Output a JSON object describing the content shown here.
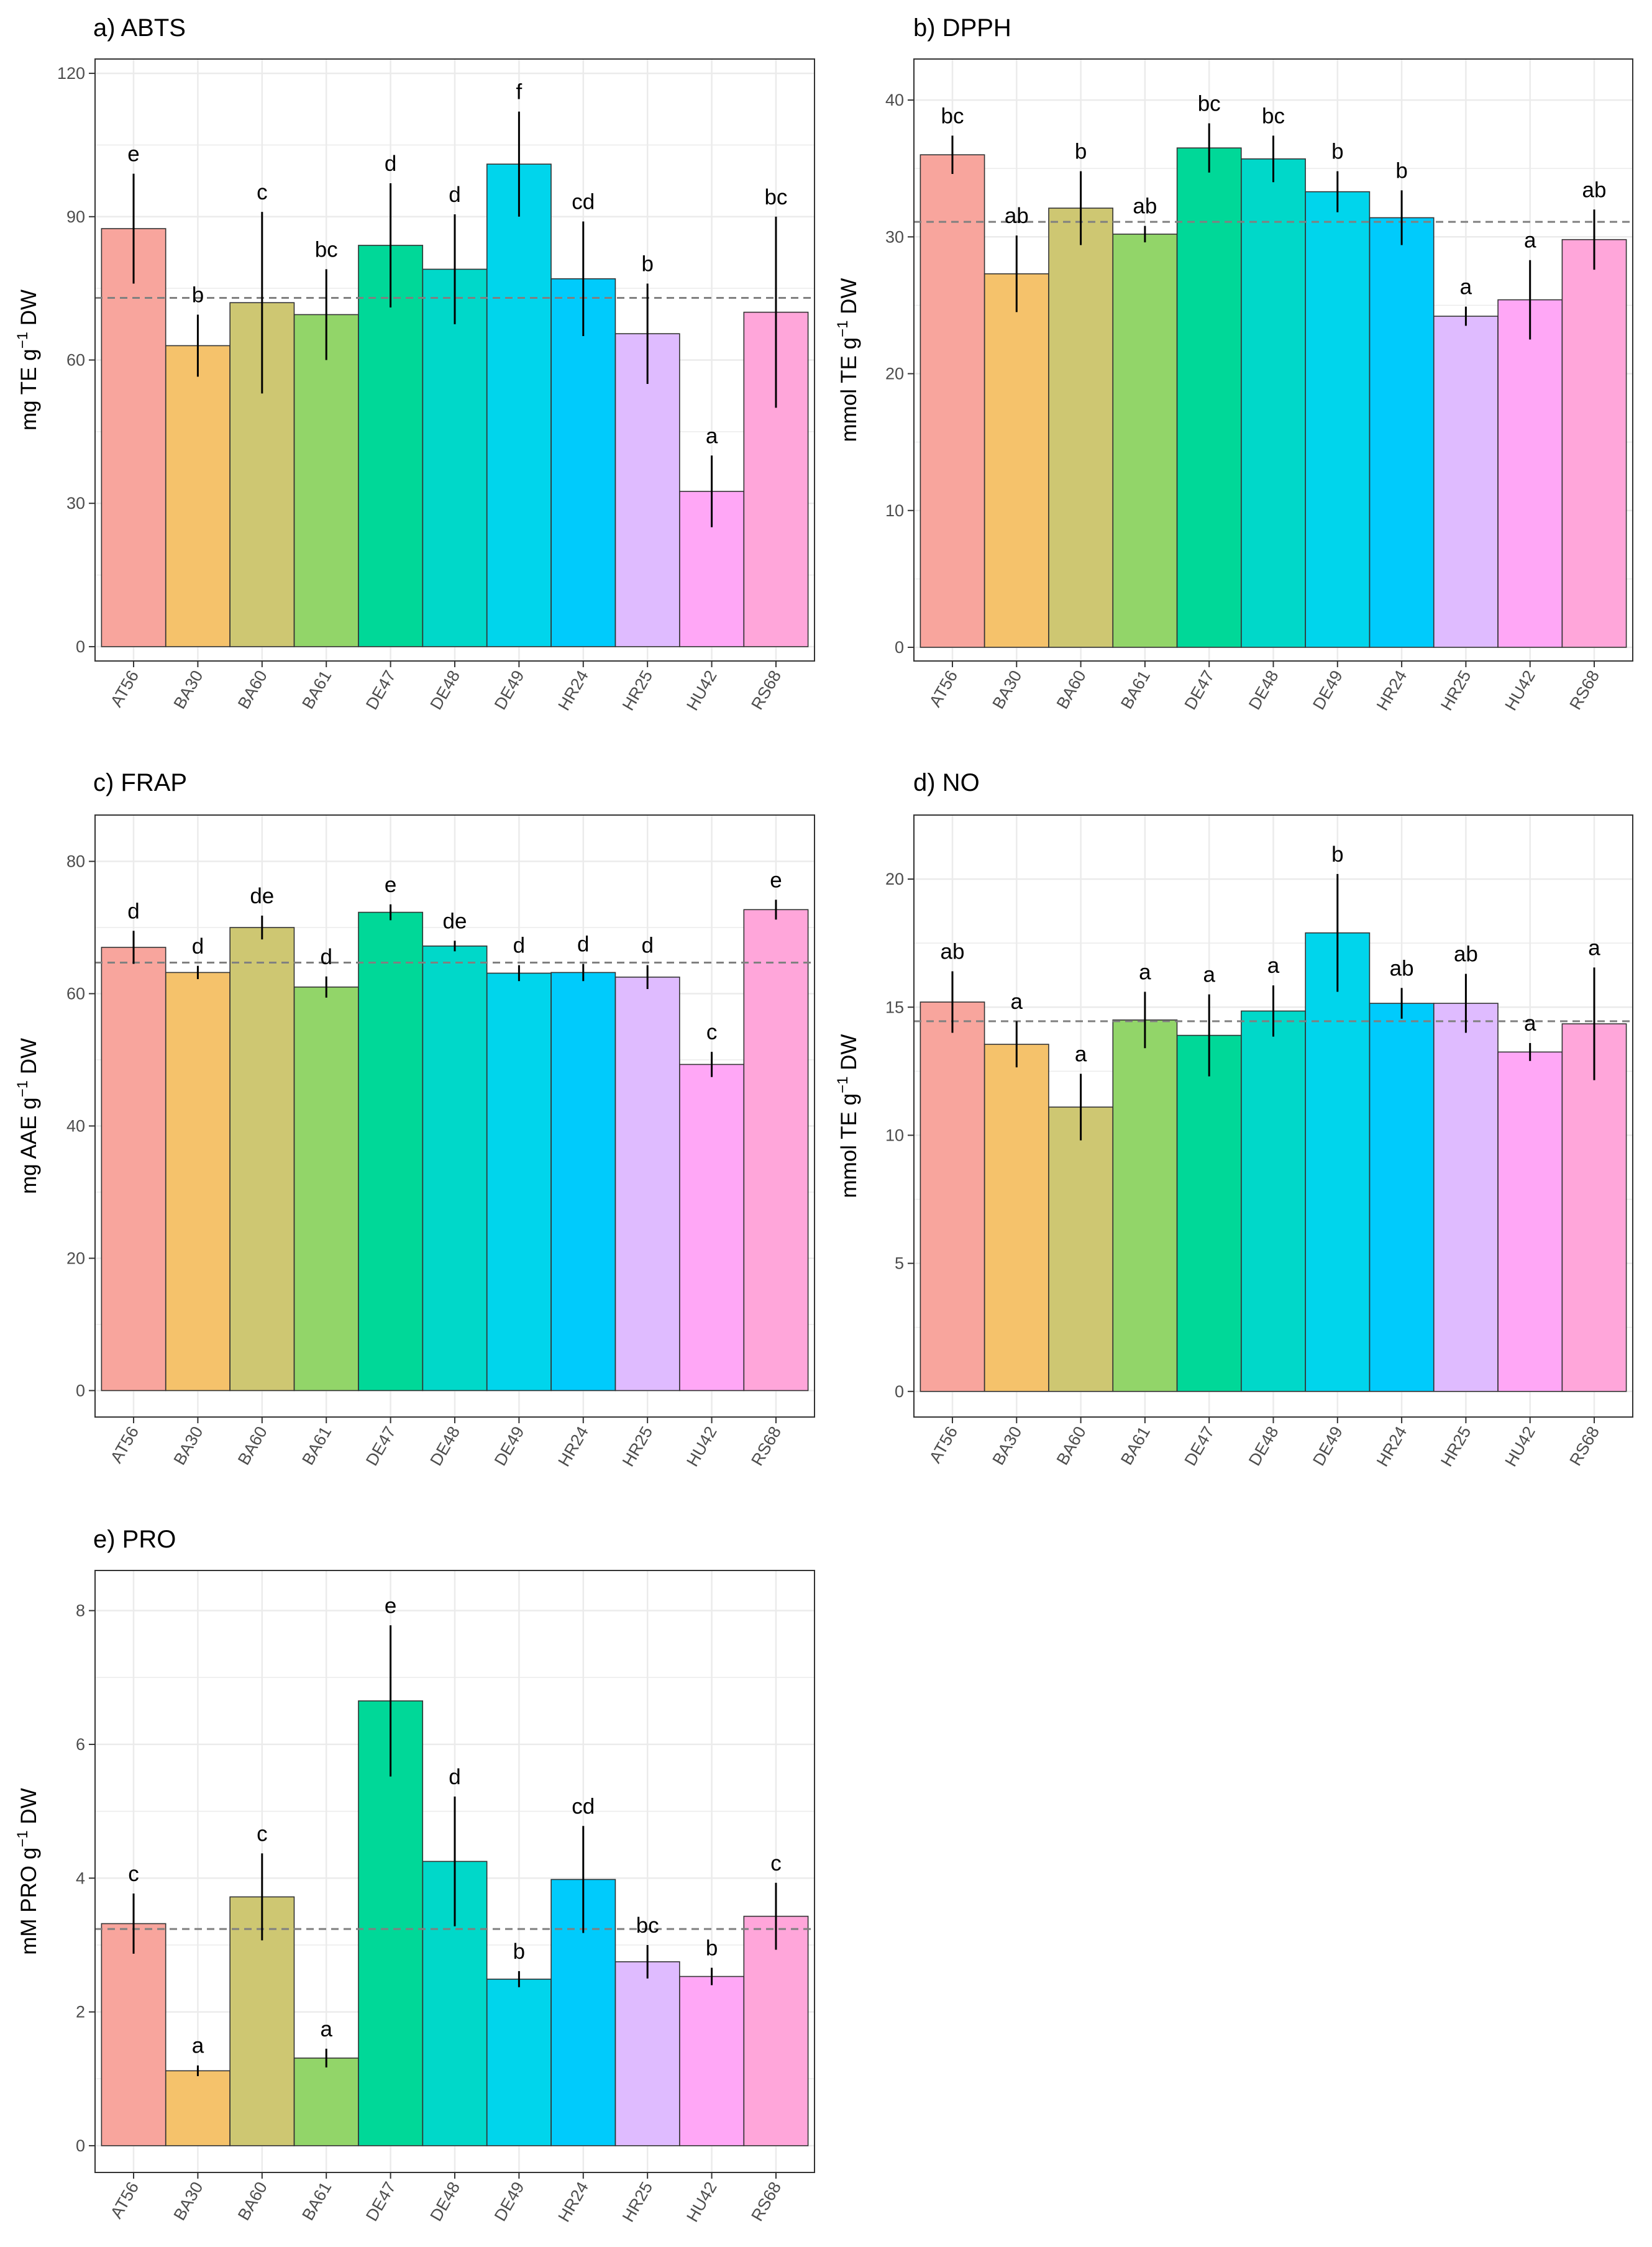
{
  "chart_data": [
    {
      "panel": "a",
      "type": "bar",
      "title": "a) ABTS",
      "ylabel": {
        "pre": "mg TE g",
        "sup": "−1",
        "post": " DW"
      },
      "xlabel": "",
      "categories": [
        "AT56",
        "BA30",
        "BA60",
        "BA61",
        "DE47",
        "DE48",
        "DE49",
        "HR24",
        "HR25",
        "HU42",
        "RS68"
      ],
      "values": [
        87.5,
        63,
        72,
        69.5,
        84,
        79,
        101,
        77,
        65.5,
        32.5,
        70
      ],
      "errors": [
        11.5,
        6.5,
        19,
        9.5,
        13,
        11.5,
        11,
        12,
        10.5,
        7.5,
        20
      ],
      "labels": [
        "e",
        "b",
        "c",
        "bc",
        "d",
        "d",
        "f",
        "cd",
        "b",
        "a",
        "bc"
      ],
      "mean_line": 73,
      "ylim": [
        -3,
        123
      ],
      "yticks": [
        0,
        30,
        60,
        90,
        120
      ]
    },
    {
      "panel": "b",
      "type": "bar",
      "title": "b) DPPH",
      "ylabel": {
        "pre": "mmol TE g",
        "sup": "−1",
        "post": " DW"
      },
      "xlabel": "",
      "categories": [
        "AT56",
        "BA30",
        "BA60",
        "BA61",
        "DE47",
        "DE48",
        "DE49",
        "HR24",
        "HR25",
        "HU42",
        "RS68"
      ],
      "values": [
        36,
        27.3,
        32.1,
        30.2,
        36.5,
        35.7,
        33.3,
        31.4,
        24.2,
        25.4,
        29.8
      ],
      "errors": [
        1.4,
        2.8,
        2.7,
        0.6,
        1.8,
        1.7,
        1.5,
        2,
        0.7,
        2.9,
        2.2
      ],
      "labels": [
        "bc",
        "ab",
        "b",
        "ab",
        "bc",
        "bc",
        "b",
        "b",
        "a",
        "a",
        "ab"
      ],
      "mean_line": 31.1,
      "ylim": [
        -1,
        43
      ],
      "yticks": [
        0,
        10,
        20,
        30,
        40
      ]
    },
    {
      "panel": "c",
      "type": "bar",
      "title": "c) FRAP",
      "ylabel": {
        "pre": "mg AAE g",
        "sup": "−1",
        "post": " DW"
      },
      "xlabel": "",
      "categories": [
        "AT56",
        "BA30",
        "BA60",
        "BA61",
        "DE47",
        "DE48",
        "DE49",
        "HR24",
        "HR25",
        "HU42",
        "RS68"
      ],
      "values": [
        67,
        63.2,
        70,
        61,
        72.3,
        67.2,
        63.1,
        63.2,
        62.5,
        49.3,
        72.7
      ],
      "errors": [
        2.5,
        1,
        1.8,
        1.6,
        1.2,
        0.8,
        1.2,
        1.3,
        1.8,
        1.9,
        1.5
      ],
      "labels": [
        "d",
        "d",
        "de",
        "d",
        "e",
        "de",
        "d",
        "d",
        "d",
        "c",
        "e"
      ],
      "mean_line": 64.7,
      "ylim": [
        -4,
        87
      ],
      "yticks": [
        0,
        20,
        40,
        60,
        80
      ]
    },
    {
      "panel": "d",
      "type": "bar",
      "title": "d) NO",
      "ylabel": {
        "pre": "mmol TE g",
        "sup": "−1",
        "post": " DW"
      },
      "xlabel": "",
      "categories": [
        "AT56",
        "BA30",
        "BA60",
        "BA61",
        "DE47",
        "DE48",
        "DE49",
        "HR24",
        "HR25",
        "HU42",
        "RS68"
      ],
      "values": [
        15.2,
        13.55,
        11.1,
        14.5,
        13.9,
        14.85,
        17.9,
        15.15,
        15.15,
        13.25,
        14.35
      ],
      "errors": [
        1.2,
        0.9,
        1.3,
        1.1,
        1.6,
        1,
        2.3,
        0.6,
        1.15,
        0.35,
        2.2
      ],
      "labels": [
        "ab",
        "a",
        "a",
        "a",
        "a",
        "a",
        "b",
        "ab",
        "ab",
        "a",
        "a"
      ],
      "mean_line": 14.45,
      "ylim": [
        -1,
        22.5
      ],
      "yticks": [
        0,
        5,
        10,
        15,
        20
      ]
    },
    {
      "panel": "e",
      "type": "bar",
      "title": "e) PRO",
      "ylabel": {
        "pre": "mM PRO g",
        "sup": "−1",
        "post": " DW"
      },
      "xlabel": "",
      "categories": [
        "AT56",
        "BA30",
        "BA60",
        "BA61",
        "DE47",
        "DE48",
        "DE49",
        "HR24",
        "HR25",
        "HU42",
        "RS68"
      ],
      "values": [
        3.32,
        1.12,
        3.72,
        1.31,
        6.65,
        4.25,
        2.49,
        3.98,
        2.75,
        2.53,
        3.43
      ],
      "errors": [
        0.45,
        0.08,
        0.65,
        0.14,
        1.13,
        0.97,
        0.12,
        0.8,
        0.25,
        0.13,
        0.5
      ],
      "labels": [
        "c",
        "a",
        "c",
        "a",
        "e",
        "d",
        "b",
        "cd",
        "bc",
        "b",
        "c"
      ],
      "mean_line": 3.24,
      "ylim": [
        -0.4,
        8.6
      ],
      "yticks": [
        0,
        2,
        4,
        6,
        8
      ]
    }
  ],
  "colors": {
    "bars": [
      "#f8a59d",
      "#f5c26b",
      "#cec772",
      "#92d569",
      "#00d898",
      "#00d8c9",
      "#00d5ec",
      "#00cbfc",
      "#dfbbff",
      "#ffa7f6",
      "#ffa6da"
    ],
    "panel_border": "#333333",
    "grid": "#ebebeb",
    "mean_line": "#808080",
    "error_bar": "#000000"
  }
}
